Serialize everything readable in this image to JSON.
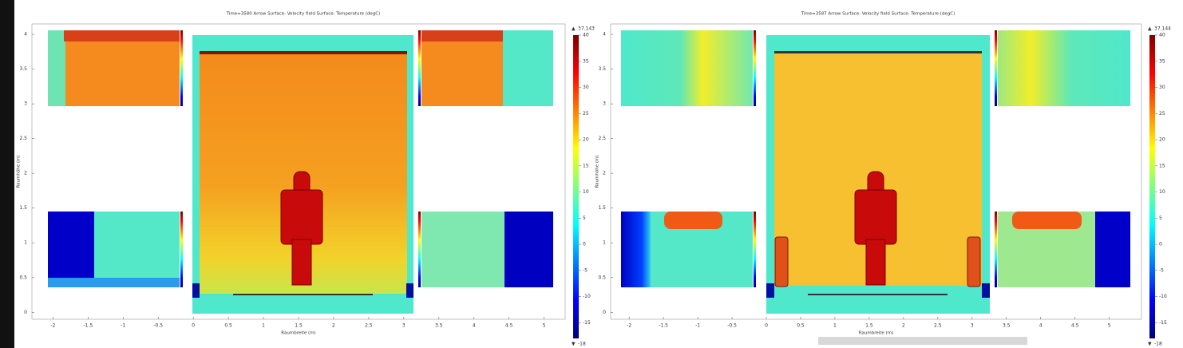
{
  "chart_data": [
    {
      "type": "surface",
      "title": "Time=3580   Arrow Surface: Velocity field   Surface: Temperature (degC)",
      "x_label": "Raumbreite (m)",
      "y_label": "Raumhöhe (m)",
      "xlim": [
        -2.3,
        5.3
      ],
      "ylim": [
        -0.1,
        4.15
      ],
      "xticks": [
        -2,
        -1.5,
        -1,
        -0.5,
        0,
        0.5,
        1,
        1.5,
        2,
        2.5,
        3,
        3.5,
        4,
        4.5,
        5
      ],
      "yticks": [
        0,
        0.5,
        1,
        1.5,
        2,
        2.5,
        3,
        3.5,
        4
      ],
      "zlim": [
        -18,
        40
      ],
      "zticks": [
        40,
        35,
        30,
        25,
        20,
        15,
        10,
        5,
        0,
        -5,
        -10,
        -15
      ],
      "zmax": 37.143,
      "zmin": -18
    },
    {
      "type": "surface",
      "title": "Time=3587   Arrow Surface: Velocity field   Surface: Temperature (degC)",
      "x_label": "Raumbreite (m)",
      "y_label": "Raumhöhe (m)",
      "xlim": [
        -2.27,
        5.47
      ],
      "ylim": [
        -0.1,
        4.15
      ],
      "xticks": [
        -2,
        -1.5,
        -1,
        -0.5,
        0,
        0.5,
        1,
        1.5,
        2,
        2.5,
        3,
        3.5,
        4,
        4.5,
        5
      ],
      "yticks": [
        0,
        0.5,
        1,
        1.5,
        2,
        2.5,
        3,
        3.5,
        4
      ],
      "zlim": [
        -18,
        40
      ],
      "zticks": [
        40,
        35,
        30,
        25,
        20,
        15,
        10,
        5,
        0,
        -5,
        -10,
        -15
      ],
      "zmax": 37.144,
      "zmin": -18
    }
  ]
}
